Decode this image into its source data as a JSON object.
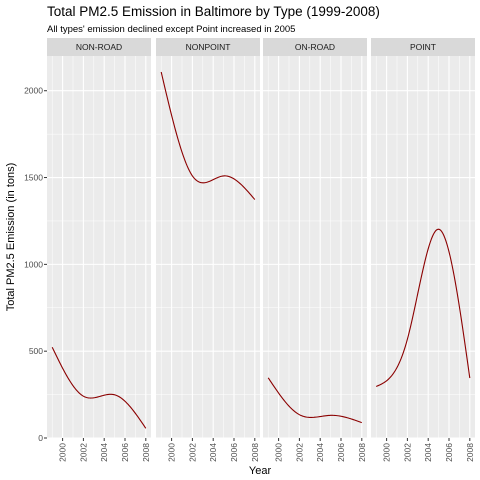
{
  "chart_data": {
    "type": "line",
    "title": "Total PM2.5 Emission in Baltimore by Type (1999-2008)",
    "subtitle": "All types' emission declined except Point increased in 2005",
    "xlabel": "Year",
    "ylabel": "Total PM2.5 Emission (in tons)",
    "xlim": [
      1998.5,
      2008.5
    ],
    "ylim": [
      0,
      2200
    ],
    "x_ticks": [
      2000,
      2002,
      2004,
      2006,
      2008
    ],
    "y_ticks": [
      0,
      500,
      1000,
      1500,
      2000
    ],
    "grid": true,
    "line_color": "#8b0000",
    "panel_background": "#ebebeb",
    "strip_background": "#d9d9d9",
    "facets": [
      {
        "name": "NON-ROAD",
        "x": [
          1999,
          2002,
          2005,
          2008
        ],
        "values": [
          522.94,
          240.85,
          248.93,
          55.82
        ]
      },
      {
        "name": "NONPOINT",
        "x": [
          1999,
          2002,
          2005,
          2008
        ],
        "values": [
          2107.63,
          1509.5,
          1509.5,
          1373.21
        ]
      },
      {
        "name": "ON-ROAD",
        "x": [
          1999,
          2002,
          2005,
          2008
        ],
        "values": [
          346.82,
          134.31,
          130.43,
          88.28
        ]
      },
      {
        "name": "POINT",
        "x": [
          1999,
          2002,
          2005,
          2008
        ],
        "values": [
          296.8,
          569.26,
          1202.49,
          344.98
        ]
      }
    ]
  }
}
